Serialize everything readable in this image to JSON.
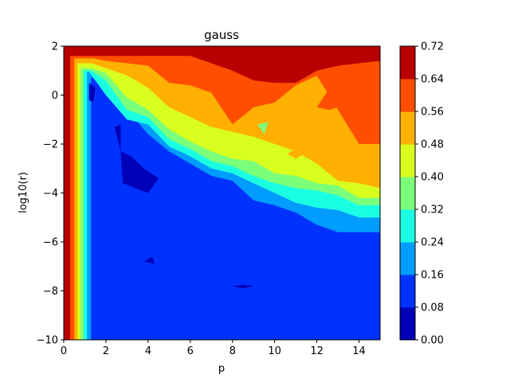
{
  "chart_data": {
    "type": "heatmap",
    "subtype": "filled-contour",
    "title": "gauss",
    "xlabel": "p",
    "ylabel": "log10(r)",
    "xlim": [
      0,
      15
    ],
    "ylim": [
      -10,
      2
    ],
    "xticks": [
      0,
      2,
      4,
      6,
      8,
      10,
      12,
      14
    ],
    "xtick_labels": [
      "0",
      "2",
      "4",
      "6",
      "8",
      "10",
      "12",
      "14"
    ],
    "yticks": [
      -10,
      -8,
      -6,
      -4,
      -2,
      0,
      2
    ],
    "ytick_labels": [
      "−10",
      "−8",
      "−6",
      "−4",
      "−2",
      "0",
      "2"
    ],
    "colormap": "jet",
    "colorbar": {
      "levels": [
        0.0,
        0.08,
        0.16,
        0.24,
        0.32,
        0.4,
        0.48,
        0.56,
        0.64,
        0.72
      ],
      "tick_labels": [
        "0.00",
        "0.08",
        "0.16",
        "0.24",
        "0.32",
        "0.40",
        "0.48",
        "0.56",
        "0.64",
        "0.72"
      ],
      "colors": [
        "#0000b8",
        "#0032ff",
        "#009cff",
        "#1affe2",
        "#7bff7b",
        "#d8ff1e",
        "#ffb000",
        "#ff4e00",
        "#b80000"
      ]
    },
    "boundaries": {
      "b1": [
        [
          1.0,
          1.0
        ],
        [
          2.0,
          0.2
        ],
        [
          3.0,
          -0.6
        ],
        [
          4.0,
          -1.6
        ],
        [
          5.0,
          -2.3
        ],
        [
          6.0,
          -2.8
        ],
        [
          7.0,
          -3.3
        ],
        [
          8.0,
          -3.5
        ],
        [
          9.0,
          -4.3
        ],
        [
          10.0,
          -4.5
        ],
        [
          11.0,
          -4.8
        ],
        [
          12.0,
          -5.3
        ],
        [
          13.0,
          -5.6
        ],
        [
          14.0,
          -5.6
        ],
        [
          15.0,
          -5.6
        ]
      ],
      "b2": [
        [
          1.2,
          0.95
        ],
        [
          2.0,
          0.0
        ],
        [
          3.0,
          -1.0
        ],
        [
          4.0,
          -1.2
        ],
        [
          5.0,
          -2.1
        ],
        [
          6.0,
          -2.5
        ],
        [
          7.0,
          -3.0
        ],
        [
          8.0,
          -3.2
        ],
        [
          9.0,
          -3.6
        ],
        [
          10.0,
          -4.0
        ],
        [
          11.0,
          -4.4
        ],
        [
          12.0,
          -4.6
        ],
        [
          13.0,
          -4.7
        ],
        [
          14.0,
          -5.0
        ],
        [
          15.0,
          -5.0
        ]
      ],
      "b3": [
        [
          1.3,
          1.0
        ],
        [
          2.0,
          0.6
        ],
        [
          3.0,
          -0.6
        ],
        [
          4.0,
          -0.9
        ],
        [
          5.0,
          -1.8
        ],
        [
          6.0,
          -2.2
        ],
        [
          7.0,
          -2.7
        ],
        [
          8.0,
          -2.9
        ],
        [
          9.0,
          -3.3
        ],
        [
          10.0,
          -3.6
        ],
        [
          11.0,
          -3.8
        ],
        [
          12.0,
          -3.9
        ],
        [
          13.0,
          -4.1
        ],
        [
          14.0,
          -4.5
        ],
        [
          15.0,
          -4.5
        ]
      ],
      "b4": [
        [
          1.3,
          1.1
        ],
        [
          2.0,
          0.9
        ],
        [
          3.0,
          -0.1
        ],
        [
          4.0,
          -0.6
        ],
        [
          5.0,
          -1.4
        ],
        [
          6.0,
          -1.9
        ],
        [
          7.0,
          -2.3
        ],
        [
          8.0,
          -2.6
        ],
        [
          9.0,
          -2.7
        ],
        [
          10.0,
          -3.2
        ],
        [
          11.0,
          -3.3
        ],
        [
          12.0,
          -3.6
        ],
        [
          13.0,
          -3.7
        ],
        [
          14.0,
          -4.2
        ],
        [
          15.0,
          -4.2
        ]
      ],
      "b5": [
        [
          1.3,
          1.3
        ],
        [
          2.0,
          1.1
        ],
        [
          3.0,
          0.8
        ],
        [
          4.0,
          0.3
        ],
        [
          5.0,
          -0.5
        ],
        [
          6.0,
          -0.9
        ],
        [
          7.0,
          -1.3
        ],
        [
          8.0,
          -1.5
        ],
        [
          9.0,
          -1.7
        ],
        [
          10.0,
          -2.0
        ],
        [
          11.0,
          -2.3
        ],
        [
          12.0,
          -2.8
        ],
        [
          13.0,
          -3.5
        ],
        [
          14.0,
          -3.6
        ],
        [
          15.0,
          -3.8
        ]
      ],
      "b6": [
        [
          1.4,
          1.5
        ],
        [
          2.0,
          1.4
        ],
        [
          3.0,
          1.3
        ],
        [
          4.0,
          1.2
        ],
        [
          5.0,
          0.5
        ],
        [
          6.0,
          0.4
        ],
        [
          7.0,
          0.1
        ],
        [
          8.0,
          -1.2
        ],
        [
          9.0,
          -0.5
        ],
        [
          10.0,
          -0.3
        ],
        [
          11.0,
          0.4
        ],
        [
          12.0,
          0.8
        ],
        [
          13.0,
          -0.6
        ],
        [
          14.0,
          -2.0
        ],
        [
          15.0,
          -2.0
        ]
      ],
      "b7": [
        [
          1.0,
          1.6
        ],
        [
          2.0,
          1.6
        ],
        [
          3.0,
          1.6
        ],
        [
          4.0,
          1.6
        ],
        [
          5.0,
          1.6
        ],
        [
          6.0,
          1.6
        ],
        [
          7.0,
          1.3
        ],
        [
          8.0,
          1.0
        ],
        [
          9.0,
          0.6
        ],
        [
          10.0,
          0.5
        ],
        [
          11.0,
          0.5
        ],
        [
          12.0,
          1.0
        ],
        [
          13.0,
          1.2
        ],
        [
          14.0,
          1.3
        ],
        [
          15.0,
          1.4
        ]
      ],
      "b8": [
        [
          1.0,
          1.8
        ],
        [
          2.0,
          1.8
        ],
        [
          3.0,
          1.8
        ],
        [
          4.0,
          1.8
        ],
        [
          5.0,
          1.7
        ],
        [
          6.0,
          1.7
        ],
        [
          7.0,
          2.0
        ],
        [
          8.0,
          2.0
        ],
        [
          9.0,
          2.0
        ],
        [
          10.0,
          2.0
        ],
        [
          11.0,
          1.7
        ],
        [
          12.0,
          1.8
        ],
        [
          13.0,
          1.7
        ],
        [
          14.0,
          1.6
        ],
        [
          15.0,
          2.0
        ]
      ]
    },
    "left_edge_x": {
      "b1": 1.3,
      "b2": 1.1,
      "b3": 0.95,
      "b4": 0.8,
      "b5": 0.65,
      "b6": 0.5,
      "b7": 0.3,
      "b8": 0.1
    },
    "features": [
      {
        "value_band": 0,
        "polygon": [
          [
            2.4,
            -1.3
          ],
          [
            2.7,
            -1.2
          ],
          [
            2.7,
            -2.3
          ]
        ]
      },
      {
        "value_band": 0,
        "polygon": [
          [
            2.7,
            -2.3
          ],
          [
            3.2,
            -2.5
          ],
          [
            3.8,
            -3.0
          ],
          [
            4.5,
            -3.4
          ],
          [
            4.0,
            -4.0
          ],
          [
            2.8,
            -3.6
          ]
        ]
      },
      {
        "value_band": 0,
        "polygon": [
          [
            3.8,
            -6.8
          ],
          [
            4.2,
            -6.6
          ],
          [
            4.3,
            -6.9
          ]
        ]
      },
      {
        "value_band": 0,
        "polygon": [
          [
            8.0,
            -7.8
          ],
          [
            8.5,
            -7.75
          ],
          [
            9.0,
            -7.8
          ],
          [
            8.5,
            -7.9
          ]
        ]
      },
      {
        "value_band": 0,
        "polygon": [
          [
            1.2,
            0.5
          ],
          [
            1.5,
            0.3
          ],
          [
            1.4,
            -0.3
          ],
          [
            1.2,
            -0.2
          ]
        ]
      },
      {
        "value_band": 7,
        "polygon": [
          [
            12.0,
            -0.5
          ],
          [
            12.6,
            0.3
          ],
          [
            13.7,
            -0.3
          ],
          [
            12.6,
            -0.6
          ]
        ]
      },
      {
        "value_band": 6,
        "polygon": [
          [
            10.6,
            -2.4
          ],
          [
            11.0,
            -2.2
          ],
          [
            11.6,
            -2.3
          ],
          [
            11.0,
            -2.6
          ]
        ]
      },
      {
        "value_band": 4,
        "polygon": [
          [
            9.2,
            -1.2
          ],
          [
            9.7,
            -1.1
          ],
          [
            9.5,
            -1.6
          ]
        ]
      }
    ]
  }
}
